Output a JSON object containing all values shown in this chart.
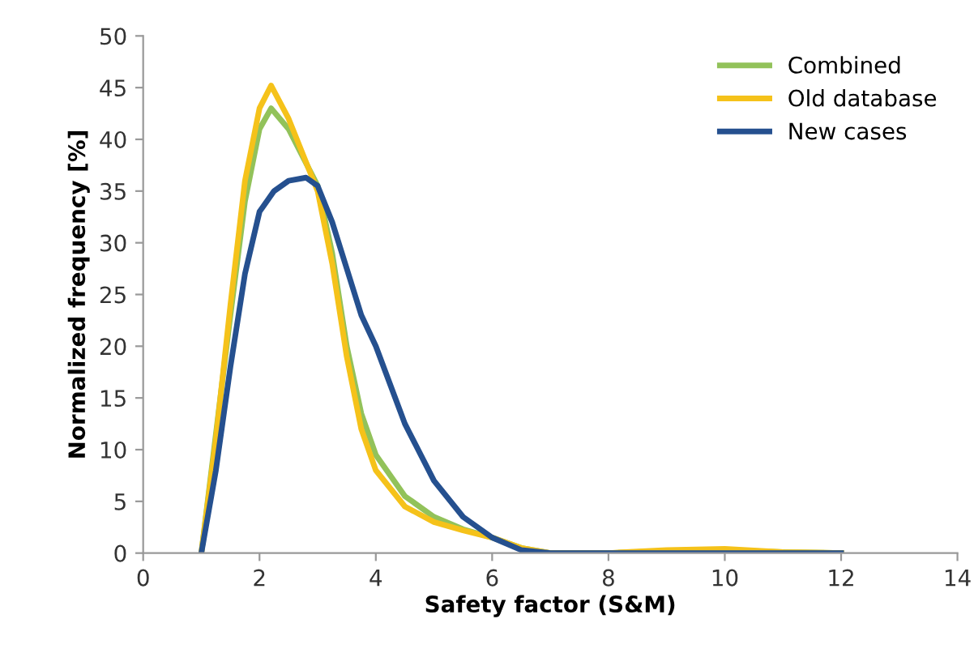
{
  "chart_data": {
    "type": "line",
    "xlabel": "Safety factor (S&M)",
    "ylabel": "Normalized frequency [%]",
    "xlim": [
      0,
      14
    ],
    "xticks": [
      0,
      2,
      4,
      6,
      8,
      10,
      12,
      14
    ],
    "ylim": [
      0,
      50
    ],
    "yticks": [
      0,
      5,
      10,
      15,
      20,
      25,
      30,
      35,
      40,
      45,
      50
    ],
    "grid": false,
    "legend": "top right",
    "marker": "none",
    "line_style": "solid",
    "series": [
      {
        "name": "Combined",
        "color": "#92c25a",
        "x": [
          1,
          1.5,
          1.75,
          2,
          2.2,
          2.5,
          3,
          3.25,
          3.5,
          3.75,
          4,
          4.5,
          5,
          5.5,
          6,
          6.5,
          7,
          8,
          9,
          10,
          11,
          12
        ],
        "values": [
          0,
          23,
          34,
          41,
          43,
          41,
          35.5,
          29,
          20,
          13.5,
          9.5,
          5.5,
          3.5,
          2.3,
          1.5,
          0.5,
          0,
          0,
          0.2,
          0.3,
          0.1,
          0
        ]
      },
      {
        "name": "Old database",
        "color": "#f5c21a",
        "x": [
          1,
          1.25,
          1.5,
          1.75,
          2,
          2.2,
          2.5,
          3,
          3.25,
          3.5,
          3.75,
          4,
          4.5,
          5,
          5.5,
          6,
          6.5,
          7,
          8,
          9,
          10,
          11,
          12
        ],
        "values": [
          0,
          11,
          24,
          36,
          43,
          45.2,
          42,
          35,
          28,
          19,
          12,
          8,
          4.5,
          3,
          2.2,
          1.5,
          0.5,
          0,
          0,
          0.3,
          0.4,
          0.1,
          0
        ]
      },
      {
        "name": "New cases",
        "color": "#25508f",
        "x": [
          1,
          1.25,
          1.5,
          1.75,
          2,
          2.25,
          2.5,
          2.8,
          3,
          3.25,
          3.5,
          3.75,
          4,
          4.5,
          5,
          5.5,
          6,
          6.5,
          7,
          8,
          9,
          10,
          11,
          12
        ],
        "values": [
          0,
          8,
          18,
          27,
          33,
          35,
          36,
          36.3,
          35.5,
          32,
          27.5,
          23,
          20,
          12.5,
          7,
          3.5,
          1.5,
          0.3,
          0,
          0,
          0,
          0,
          0,
          0
        ]
      }
    ]
  }
}
